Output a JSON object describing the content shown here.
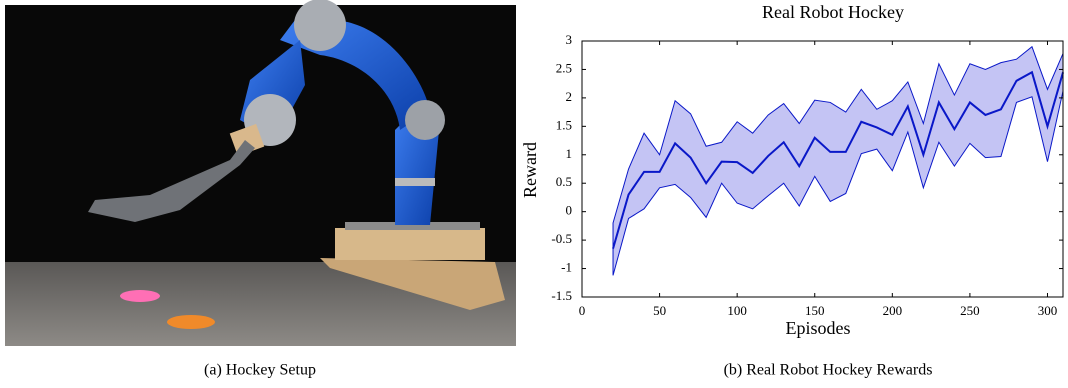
{
  "chart_data": {
    "type": "line",
    "title": "Real Robot Hockey",
    "x_label": "Episodes",
    "y_label": "Reward",
    "x": [
      20,
      30,
      40,
      50,
      60,
      70,
      80,
      90,
      100,
      110,
      120,
      130,
      140,
      150,
      160,
      170,
      180,
      190,
      200,
      210,
      220,
      230,
      240,
      250,
      260,
      270,
      280,
      290,
      300,
      310
    ],
    "values": [
      -0.65,
      0.3,
      0.7,
      0.7,
      1.2,
      0.95,
      0.5,
      0.88,
      0.87,
      0.68,
      0.98,
      1.22,
      0.8,
      1.3,
      1.05,
      1.05,
      1.58,
      1.48,
      1.35,
      1.85,
      1.0,
      1.92,
      1.45,
      1.92,
      1.7,
      1.8,
      2.3,
      2.45,
      1.5,
      2.45
    ],
    "upper": [
      -0.2,
      0.75,
      1.38,
      1.0,
      1.95,
      1.72,
      1.15,
      1.22,
      1.58,
      1.38,
      1.7,
      1.9,
      1.55,
      1.96,
      1.92,
      1.75,
      2.15,
      1.8,
      1.95,
      2.28,
      1.55,
      2.6,
      2.05,
      2.6,
      2.5,
      2.62,
      2.68,
      2.9,
      2.15,
      2.78
    ],
    "lower": [
      -1.12,
      -0.12,
      0.05,
      0.42,
      0.48,
      0.25,
      -0.1,
      0.5,
      0.15,
      0.05,
      0.28,
      0.5,
      0.1,
      0.62,
      0.18,
      0.32,
      1.02,
      1.1,
      0.72,
      1.4,
      0.42,
      1.22,
      0.8,
      1.2,
      0.95,
      0.97,
      1.92,
      2.02,
      0.88,
      2.12
    ],
    "color": "#0a18c8",
    "fill_color": "#c4c4f4",
    "xlim": [
      0,
      310
    ],
    "xticks": [
      0,
      50,
      100,
      150,
      200,
      250,
      300
    ],
    "ylim": [
      -1.5,
      3
    ],
    "yticks": [
      -1.5,
      -1,
      -0.5,
      0,
      0.5,
      1,
      1.5,
      2,
      2.5,
      3
    ]
  },
  "captions": [
    "(a) Hockey Setup",
    "(b) Real Robot Hockey Rewards"
  ]
}
